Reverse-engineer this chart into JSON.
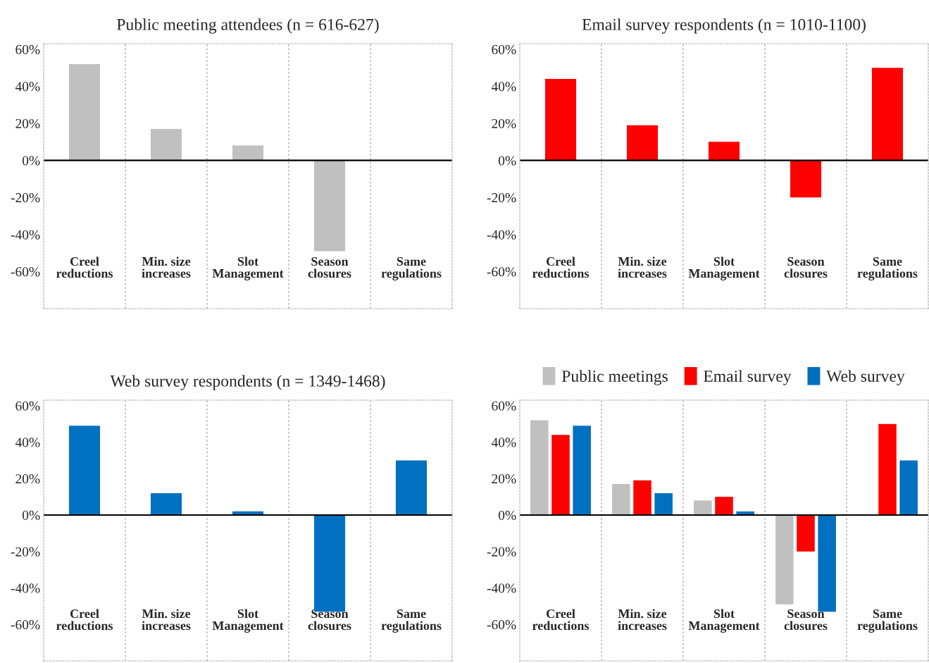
{
  "chart_data": [
    {
      "type": "bar",
      "title": "Public meeting attendees (n = 616-627)",
      "categories": [
        "Creel\nreductions",
        "Min. size\nincreases",
        "Slot\nManagement",
        "Season\nclosures",
        "Same\nregulations"
      ],
      "series": [
        {
          "color": "#c0c0c0",
          "values": [
            52,
            17,
            8,
            -49,
            0
          ]
        }
      ],
      "ylim": [
        -80,
        63
      ],
      "yticks": [
        {
          "value": -60,
          "label": "-60%"
        },
        {
          "value": -40,
          "label": "-40%"
        },
        {
          "value": -20,
          "label": "-20%"
        },
        {
          "value": 0,
          "label": "0%"
        },
        {
          "value": 20,
          "label": "20%"
        },
        {
          "value": 40,
          "label": "40%"
        },
        {
          "value": 60,
          "label": "60%"
        }
      ],
      "grid": "x",
      "ref_lines": [
        {
          "axis": "y",
          "value": 0
        }
      ]
    },
    {
      "type": "bar",
      "title": "Email survey respondents (n = 1010-1100)",
      "categories": [
        "Creel\nreductions",
        "Min. size\nincreases",
        "Slot\nManagement",
        "Season\nclosures",
        "Same\nregulations"
      ],
      "series": [
        {
          "color": "#ff0000",
          "values": [
            44,
            19,
            10,
            -20,
            50
          ]
        }
      ],
      "ylim": [
        -80,
        63
      ],
      "yticks": [
        {
          "value": -60,
          "label": "-60%"
        },
        {
          "value": -40,
          "label": "-40%"
        },
        {
          "value": -20,
          "label": "-20%"
        },
        {
          "value": 0,
          "label": "0%"
        },
        {
          "value": 20,
          "label": "20%"
        },
        {
          "value": 40,
          "label": "40%"
        },
        {
          "value": 60,
          "label": "60%"
        }
      ],
      "grid": "x",
      "ref_lines": [
        {
          "axis": "y",
          "value": 0
        }
      ]
    },
    {
      "type": "bar",
      "title": "Web survey respondents (n = 1349-1468)",
      "categories": [
        "Creel\nreductions",
        "Min. size\nincreases",
        "Slot\nManagement",
        "Season\nclosures",
        "Same\nregulations"
      ],
      "series": [
        {
          "color": "#0070c0",
          "values": [
            49,
            12,
            2,
            -53,
            30
          ]
        }
      ],
      "ylim": [
        -80,
        63
      ],
      "yticks": [
        {
          "value": -60,
          "label": "-60%"
        },
        {
          "value": -40,
          "label": "-40%"
        },
        {
          "value": -20,
          "label": "-20%"
        },
        {
          "value": 0,
          "label": "0%"
        },
        {
          "value": 20,
          "label": "20%"
        },
        {
          "value": 40,
          "label": "40%"
        },
        {
          "value": 60,
          "label": "60%"
        }
      ],
      "grid": "x",
      "ref_lines": [
        {
          "axis": "y",
          "value": 0
        }
      ]
    },
    {
      "type": "bar",
      "categories": [
        "Creel\nreductions",
        "Min. size\nincreases",
        "Slot\nManagement",
        "Season\nclosures",
        "Same\nregulations"
      ],
      "series": [
        {
          "name": "Public meetings",
          "color": "#c0c0c0",
          "values": [
            52,
            17,
            8,
            -49,
            0
          ]
        },
        {
          "name": "Email survey",
          "color": "#ff0000",
          "values": [
            44,
            19,
            10,
            -20,
            50
          ]
        },
        {
          "name": "Web survey",
          "color": "#0070c0",
          "values": [
            49,
            12,
            2,
            -53,
            30
          ]
        }
      ],
      "ylim": [
        -80,
        63
      ],
      "yticks": [
        {
          "value": -60,
          "label": "-60%"
        },
        {
          "value": -40,
          "label": "-40%"
        },
        {
          "value": -20,
          "label": "-20%"
        },
        {
          "value": 0,
          "label": "0%"
        },
        {
          "value": 20,
          "label": "20%"
        },
        {
          "value": 40,
          "label": "40%"
        },
        {
          "value": 60,
          "label": "60%"
        }
      ],
      "grid": "x",
      "ref_lines": [
        {
          "axis": "y",
          "value": 0
        }
      ],
      "legend": "top"
    }
  ]
}
